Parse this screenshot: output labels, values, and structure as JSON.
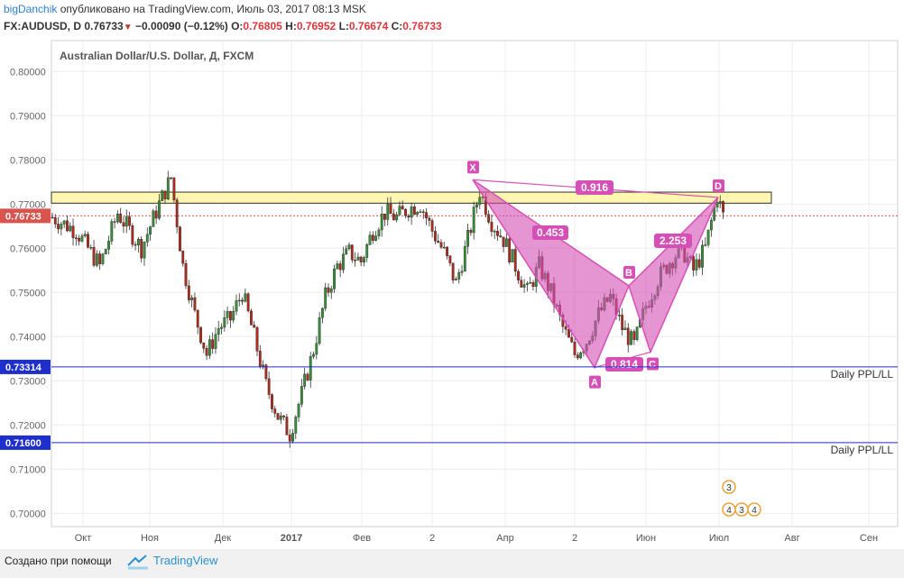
{
  "header": {
    "author": "bigDanchik",
    "published": "опубликовано на TradingView.com, Июль 03, 2017 08:13 MSK",
    "symbol": "FX:AUDUSD, D",
    "last": "0.76733",
    "change": "−0.00090 (−0.12%)",
    "o_label": "O:",
    "o_val": "0.76805",
    "h_label": "H:",
    "h_val": "0.76952",
    "l_label": "L:",
    "l_val": "0.76674",
    "c_label": "C:",
    "c_val": "0.76733"
  },
  "colors": {
    "up": "#3a8f3a",
    "down": "#b22a1e",
    "pattern": "#d64fb6",
    "zone": "#fff7b0",
    "hline": "#1f2fcc",
    "price": "#d9534f"
  },
  "chart_data": {
    "type": "candlestick",
    "title": "Australian Dollar/U.S. Dollar, Д, FXCM",
    "ylim": [
      0.697,
      0.807
    ],
    "yticks": [
      "0.80000",
      "0.79000",
      "0.78000",
      "0.77000",
      "0.76000",
      "0.75000",
      "0.74000",
      "0.73000",
      "0.72000",
      "0.71000",
      "0.70000"
    ],
    "xticks": [
      "Окт",
      "Ноя",
      "Дек",
      "2017",
      "Фев",
      "2",
      "Апр",
      "2",
      "Июн",
      "Июл",
      "Авг",
      "Сен"
    ],
    "last_price": 0.76733,
    "last_price_label": "0.76733",
    "zone": [
      0.7702,
      0.7727
    ],
    "hlines": [
      {
        "value": 0.73314,
        "label": "0.73314",
        "text": "Daily PPL/LL"
      },
      {
        "value": 0.716,
        "label": "0.71600",
        "text": "Daily PPL/LL"
      }
    ],
    "pattern": {
      "points": {
        "X": 0.7755,
        "A": 0.733,
        "B": 0.7515,
        "C": 0.7365,
        "D": 0.7715
      },
      "ratios": [
        "0.916",
        "0.453",
        "0.814",
        "2.253"
      ]
    },
    "anchors": [
      {
        "i": 0,
        "v": 0.767
      },
      {
        "i": 8,
        "v": 0.764
      },
      {
        "i": 12,
        "v": 0.76
      },
      {
        "i": 16,
        "v": 0.756
      },
      {
        "i": 22,
        "v": 0.768
      },
      {
        "i": 26,
        "v": 0.764
      },
      {
        "i": 30,
        "v": 0.76
      },
      {
        "i": 36,
        "v": 0.77
      },
      {
        "i": 40,
        "v": 0.776
      },
      {
        "i": 44,
        "v": 0.756
      },
      {
        "i": 48,
        "v": 0.745
      },
      {
        "i": 52,
        "v": 0.736
      },
      {
        "i": 56,
        "v": 0.742
      },
      {
        "i": 60,
        "v": 0.744
      },
      {
        "i": 64,
        "v": 0.75
      },
      {
        "i": 68,
        "v": 0.74
      },
      {
        "i": 72,
        "v": 0.729
      },
      {
        "i": 76,
        "v": 0.722
      },
      {
        "i": 80,
        "v": 0.718
      },
      {
        "i": 84,
        "v": 0.727
      },
      {
        "i": 88,
        "v": 0.737
      },
      {
        "i": 92,
        "v": 0.749
      },
      {
        "i": 96,
        "v": 0.756
      },
      {
        "i": 100,
        "v": 0.759
      },
      {
        "i": 104,
        "v": 0.757
      },
      {
        "i": 108,
        "v": 0.764
      },
      {
        "i": 112,
        "v": 0.768
      },
      {
        "i": 116,
        "v": 0.767
      },
      {
        "i": 120,
        "v": 0.769
      },
      {
        "i": 124,
        "v": 0.77
      },
      {
        "i": 128,
        "v": 0.764
      },
      {
        "i": 132,
        "v": 0.759
      },
      {
        "i": 136,
        "v": 0.752
      },
      {
        "i": 140,
        "v": 0.762
      },
      {
        "i": 144,
        "v": 0.773
      },
      {
        "i": 148,
        "v": 0.766
      },
      {
        "i": 152,
        "v": 0.762
      },
      {
        "i": 156,
        "v": 0.756
      },
      {
        "i": 160,
        "v": 0.75
      },
      {
        "i": 164,
        "v": 0.756
      },
      {
        "i": 168,
        "v": 0.75
      },
      {
        "i": 172,
        "v": 0.742
      },
      {
        "i": 176,
        "v": 0.736
      },
      {
        "i": 180,
        "v": 0.739
      },
      {
        "i": 184,
        "v": 0.745
      },
      {
        "i": 188,
        "v": 0.749
      },
      {
        "i": 192,
        "v": 0.742
      },
      {
        "i": 196,
        "v": 0.738
      },
      {
        "i": 200,
        "v": 0.747
      },
      {
        "i": 204,
        "v": 0.753
      },
      {
        "i": 208,
        "v": 0.757
      },
      {
        "i": 212,
        "v": 0.76
      },
      {
        "i": 216,
        "v": 0.755
      },
      {
        "i": 220,
        "v": 0.76
      },
      {
        "i": 224,
        "v": 0.772
      },
      {
        "i": 226,
        "v": 0.7673
      }
    ],
    "events": [
      {
        "label": "3",
        "row": 1
      },
      {
        "label": "4",
        "row": 2
      },
      {
        "label": "3",
        "row": 2
      },
      {
        "label": "4",
        "row": 2
      }
    ]
  },
  "footer": {
    "created_by": "Создано при помощи",
    "brand": "TradingView"
  }
}
